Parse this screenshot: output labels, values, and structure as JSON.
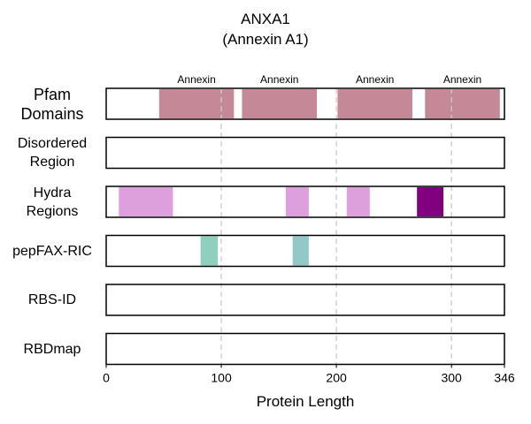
{
  "chart_data": {
    "type": "track",
    "title": "ANXA1",
    "subtitle": "(Annexin A1)",
    "xlabel": "Protein Length",
    "xlim": [
      0,
      346
    ],
    "xticks": [
      0,
      100,
      200,
      300,
      346
    ],
    "gridlines": [
      100,
      200,
      300
    ],
    "tracks": [
      {
        "name": "Pfam Domains",
        "name_lines": [
          "Pfam",
          "Domains"
        ],
        "segments": [
          {
            "start": 46,
            "end": 111,
            "label": "Annexin",
            "color": "#c48896"
          },
          {
            "start": 118,
            "end": 183,
            "label": "Annexin",
            "color": "#c48896"
          },
          {
            "start": 201,
            "end": 266,
            "label": "Annexin",
            "color": "#c48896"
          },
          {
            "start": 277,
            "end": 342,
            "label": "Annexin",
            "color": "#c48896"
          }
        ]
      },
      {
        "name": "Disordered Region",
        "name_lines": [
          "Disordered",
          "Region"
        ],
        "segments": []
      },
      {
        "name": "Hydra Regions",
        "name_lines": [
          "Hydra",
          "Regions"
        ],
        "segments": [
          {
            "start": 11,
            "end": 58,
            "color": "#dda0dd"
          },
          {
            "start": 156,
            "end": 176,
            "color": "#dda0dd"
          },
          {
            "start": 209,
            "end": 229,
            "color": "#dda0dd"
          },
          {
            "start": 270,
            "end": 293,
            "color": "#800080"
          }
        ]
      },
      {
        "name": "pepFAX-RIC",
        "name_lines": [
          "pepFAX-RIC"
        ],
        "segments": [
          {
            "start": 82,
            "end": 97,
            "color": "#8ecfbd"
          },
          {
            "start": 162,
            "end": 176,
            "color": "#92c9c8"
          }
        ]
      },
      {
        "name": "RBS-ID",
        "name_lines": [
          "RBS-ID"
        ],
        "segments": []
      },
      {
        "name": "RBDmap",
        "name_lines": [
          "RBDmap"
        ],
        "segments": []
      }
    ]
  }
}
